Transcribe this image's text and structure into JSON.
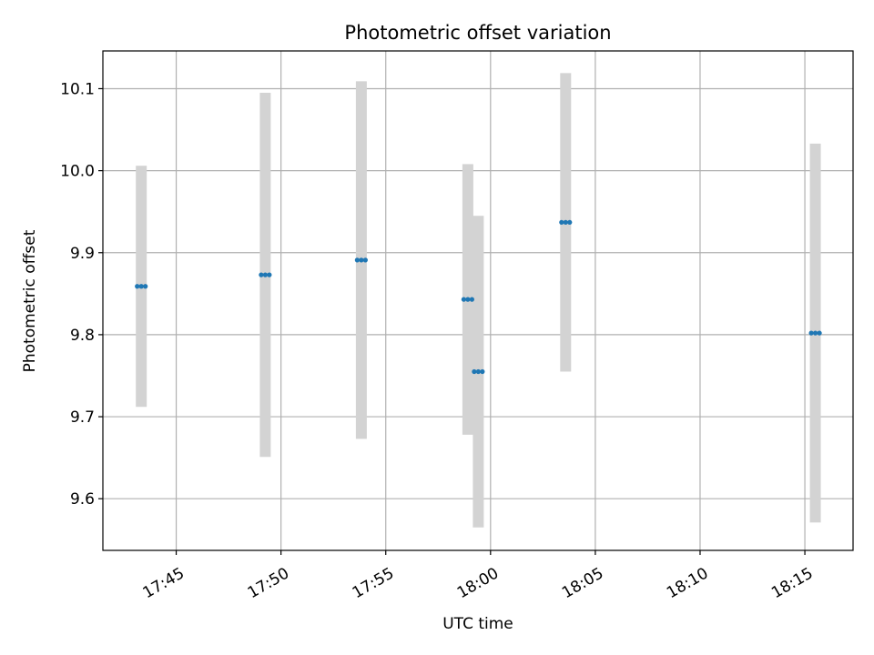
{
  "chart_data": {
    "type": "scatter",
    "title": "Photometric offset variation",
    "xlabel": "UTC time",
    "ylabel": "Photometric offset",
    "xlim": [
      "17:41.5",
      "18:17.3"
    ],
    "ylim": [
      9.537,
      10.146
    ],
    "grid": true,
    "x_ticks": [
      "17:45",
      "17:50",
      "17:55",
      "18:00",
      "18:05",
      "18:10",
      "18:15"
    ],
    "y_ticks": [
      "9.6",
      "9.7",
      "9.8",
      "9.9",
      "10.0",
      "10.1"
    ],
    "point_color": "#1f77b4",
    "errorbar_color": "#d3d3d3",
    "points": [
      {
        "time": "17:43:20",
        "value": 9.859,
        "err": 0.147
      },
      {
        "time": "17:49:15",
        "value": 9.873,
        "err": 0.222
      },
      {
        "time": "17:53:50",
        "value": 9.891,
        "err": 0.218
      },
      {
        "time": "17:58:55",
        "value": 9.843,
        "err": 0.165
      },
      {
        "time": "17:59:25",
        "value": 9.755,
        "err": 0.19
      },
      {
        "time": "18:03:35",
        "value": 9.937,
        "err": 0.182
      },
      {
        "time": "18:15:30",
        "value": 9.802,
        "err": 0.231
      }
    ]
  }
}
